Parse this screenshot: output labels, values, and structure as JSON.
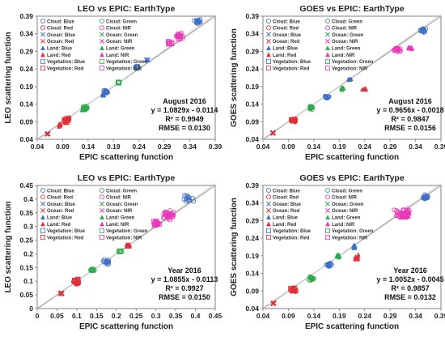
{
  "series_styles": [
    {
      "name": "Cloud: Blue",
      "color": "#3f6fc6",
      "marker": "circle"
    },
    {
      "name": "Cloud: Green",
      "color": "#2eaa4a",
      "marker": "circle"
    },
    {
      "name": "Cloud: Red",
      "color": "#e0323b",
      "marker": "circle"
    },
    {
      "name": "Cloud: NIR",
      "color": "#e83ab9",
      "marker": "circle"
    },
    {
      "name": "Ocean: Blue",
      "color": "#3f6fc6",
      "marker": "x"
    },
    {
      "name": "Ocean: Green",
      "color": "#2eaa4a",
      "marker": "x"
    },
    {
      "name": "Ocean: Red",
      "color": "#e0323b",
      "marker": "x"
    },
    {
      "name": "Ocean: NIR",
      "color": "#e83ab9",
      "marker": "x"
    },
    {
      "name": "Land: Blue",
      "color": "#3f6fc6",
      "marker": "triangle"
    },
    {
      "name": "Land: Green",
      "color": "#2eaa4a",
      "marker": "triangle"
    },
    {
      "name": "Land: Red",
      "color": "#e0323b",
      "marker": "triangle"
    },
    {
      "name": "Land: NIR",
      "color": "#e83ab9",
      "marker": "triangle"
    },
    {
      "name": "Vegetation: Blue",
      "color": "#3f6fc6",
      "marker": "square"
    },
    {
      "name": "Vegetation: Green",
      "color": "#2eaa4a",
      "marker": "square"
    },
    {
      "name": "Vegetation: Red",
      "color": "#e0323b",
      "marker": "square"
    },
    {
      "name": "Vegetation: NIR",
      "color": "#e83ab9",
      "marker": "square"
    }
  ],
  "chart_data": [
    {
      "type": "scatter",
      "title": "LEO vs EPIC: EarthType",
      "xlabel": "EPIC scattering function",
      "ylabel": "LEO scattering function",
      "xlim": [
        0.04,
        0.39
      ],
      "ylim": [
        0.04,
        0.39
      ],
      "xticks": [
        "0.04",
        "0.09",
        "0.14",
        "0.19",
        "0.24",
        "0.29",
        "0.34",
        "0.39"
      ],
      "yticks": [
        "0.04",
        "0.09",
        "0.14",
        "0.19",
        "0.24",
        "0.29",
        "0.34",
        "0.39"
      ],
      "legend": "top-left",
      "annotation": [
        "August 2016",
        "y = 1.0829x - 0.0114",
        "R² = 0.9949",
        "RMSE = 0.0130"
      ],
      "clusters": [
        {
          "series": 6,
          "x": 0.06,
          "y": 0.055,
          "n": 8,
          "sx": 0.004,
          "sy": 0.003
        },
        {
          "series": 10,
          "x": 0.085,
          "y": 0.08,
          "n": 12,
          "sx": 0.006,
          "sy": 0.005
        },
        {
          "series": 2,
          "x": 0.1,
          "y": 0.097,
          "n": 22,
          "sx": 0.008,
          "sy": 0.007
        },
        {
          "series": 14,
          "x": 0.095,
          "y": 0.092,
          "n": 12,
          "sx": 0.007,
          "sy": 0.006
        },
        {
          "series": 1,
          "x": 0.135,
          "y": 0.13,
          "n": 16,
          "sx": 0.006,
          "sy": 0.006
        },
        {
          "series": 9,
          "x": 0.13,
          "y": 0.125,
          "n": 8,
          "sx": 0.004,
          "sy": 0.004
        },
        {
          "series": 0,
          "x": 0.175,
          "y": 0.175,
          "n": 16,
          "sx": 0.006,
          "sy": 0.006
        },
        {
          "series": 8,
          "x": 0.17,
          "y": 0.165,
          "n": 6,
          "sx": 0.004,
          "sy": 0.004
        },
        {
          "series": 13,
          "x": 0.2,
          "y": 0.2,
          "n": 6,
          "sx": 0.004,
          "sy": 0.004
        },
        {
          "series": 12,
          "x": 0.235,
          "y": 0.245,
          "n": 6,
          "sx": 0.004,
          "sy": 0.004
        },
        {
          "series": 4,
          "x": 0.255,
          "y": 0.265,
          "n": 4,
          "sx": 0.004,
          "sy": 0.004
        },
        {
          "series": 3,
          "x": 0.32,
          "y": 0.335,
          "n": 22,
          "sx": 0.012,
          "sy": 0.012
        },
        {
          "series": 15,
          "x": 0.3,
          "y": 0.315,
          "n": 10,
          "sx": 0.006,
          "sy": 0.006
        },
        {
          "series": 0,
          "x": 0.355,
          "y": 0.375,
          "n": 18,
          "sx": 0.008,
          "sy": 0.01
        }
      ]
    },
    {
      "type": "scatter",
      "title": "GOES vs EPIC: EarthType",
      "xlabel": "EPIC scattering function",
      "ylabel": "GOES scattering function",
      "xlim": [
        0.04,
        0.39
      ],
      "ylim": [
        0.04,
        0.39
      ],
      "xticks": [
        "0.04",
        "0.09",
        "0.14",
        "0.19",
        "0.24",
        "0.29",
        "0.34",
        "0.39"
      ],
      "yticks": [
        "0.04",
        "0.09",
        "0.14",
        "0.19",
        "0.24",
        "0.29",
        "0.34",
        "0.39"
      ],
      "legend": "top-left",
      "annotation": [
        "August 2016",
        "y = 0.9656x - 0.0018",
        "R² = 0.9847",
        "RMSE = 0.0156"
      ],
      "clusters": [
        {
          "series": 6,
          "x": 0.06,
          "y": 0.058,
          "n": 8,
          "sx": 0.004,
          "sy": 0.003
        },
        {
          "series": 2,
          "x": 0.1,
          "y": 0.095,
          "n": 18,
          "sx": 0.007,
          "sy": 0.006
        },
        {
          "series": 14,
          "x": 0.1,
          "y": 0.095,
          "n": 10,
          "sx": 0.007,
          "sy": 0.006
        },
        {
          "series": 1,
          "x": 0.135,
          "y": 0.13,
          "n": 16,
          "sx": 0.006,
          "sy": 0.006
        },
        {
          "series": 0,
          "x": 0.165,
          "y": 0.16,
          "n": 14,
          "sx": 0.006,
          "sy": 0.006
        },
        {
          "series": 9,
          "x": 0.195,
          "y": 0.185,
          "n": 6,
          "sx": 0.006,
          "sy": 0.006
        },
        {
          "series": 8,
          "x": 0.21,
          "y": 0.21,
          "n": 5,
          "sx": 0.004,
          "sy": 0.004
        },
        {
          "series": 10,
          "x": 0.24,
          "y": 0.183,
          "n": 6,
          "sx": 0.005,
          "sy": 0.004
        },
        {
          "series": 3,
          "x": 0.305,
          "y": 0.295,
          "n": 22,
          "sx": 0.01,
          "sy": 0.008
        },
        {
          "series": 11,
          "x": 0.33,
          "y": 0.3,
          "n": 10,
          "sx": 0.006,
          "sy": 0.006
        },
        {
          "series": 0,
          "x": 0.355,
          "y": 0.35,
          "n": 16,
          "sx": 0.008,
          "sy": 0.008
        }
      ]
    },
    {
      "type": "scatter",
      "title": "LEO vs EPIC: EarthType",
      "xlabel": "EPIC scattering function",
      "ylabel": "LEO scattering function",
      "xlim": [
        0.0,
        0.45
      ],
      "ylim": [
        0.0,
        0.45
      ],
      "xticks": [
        "0",
        "0.05",
        "0.1",
        "0.15",
        "0.2",
        "0.25",
        "0.3",
        "0.35",
        "0.4",
        "0.45"
      ],
      "yticks": [
        "0",
        "0.05",
        "0.1",
        "0.15",
        "0.2",
        "0.25",
        "0.3",
        "0.35",
        "0.4",
        "0.45"
      ],
      "legend": "top-left",
      "annotation": [
        "Year 2016",
        "y = 1.0855x - 0.0113",
        "R² = 0.9927",
        "RMSE = 0.0150"
      ],
      "clusters": [
        {
          "series": 6,
          "x": 0.06,
          "y": 0.055,
          "n": 10,
          "sx": 0.005,
          "sy": 0.004
        },
        {
          "series": 14,
          "x": 0.1,
          "y": 0.1,
          "n": 14,
          "sx": 0.01,
          "sy": 0.01
        },
        {
          "series": 2,
          "x": 0.1,
          "y": 0.095,
          "n": 18,
          "sx": 0.01,
          "sy": 0.009
        },
        {
          "series": 1,
          "x": 0.14,
          "y": 0.14,
          "n": 14,
          "sx": 0.008,
          "sy": 0.008
        },
        {
          "series": 0,
          "x": 0.175,
          "y": 0.17,
          "n": 16,
          "sx": 0.01,
          "sy": 0.01
        },
        {
          "series": 13,
          "x": 0.21,
          "y": 0.21,
          "n": 8,
          "sx": 0.006,
          "sy": 0.006
        },
        {
          "series": 10,
          "x": 0.23,
          "y": 0.23,
          "n": 10,
          "sx": 0.008,
          "sy": 0.008
        },
        {
          "series": 3,
          "x": 0.33,
          "y": 0.34,
          "n": 40,
          "sx": 0.022,
          "sy": 0.025
        },
        {
          "series": 15,
          "x": 0.3,
          "y": 0.31,
          "n": 18,
          "sx": 0.012,
          "sy": 0.012
        },
        {
          "series": 0,
          "x": 0.38,
          "y": 0.4,
          "n": 16,
          "sx": 0.018,
          "sy": 0.018
        }
      ]
    },
    {
      "type": "scatter",
      "title": "GOES vs EPIC: EarthType",
      "xlabel": "EPIC scattering function",
      "ylabel": "GOES scattering function",
      "xlim": [
        0.04,
        0.39
      ],
      "ylim": [
        0.04,
        0.39
      ],
      "xticks": [
        "0.04",
        "0.09",
        "0.14",
        "0.19",
        "0.24",
        "0.29",
        "0.34",
        "0.39"
      ],
      "yticks": [
        "0.04",
        "0.09",
        "0.14",
        "0.19",
        "0.24",
        "0.29",
        "0.34",
        "0.39"
      ],
      "legend": "top-left",
      "annotation": [
        "Year 2016",
        "y = 1.0052x - 0.0045",
        "R² = 0.9857",
        "RMSE = 0.0132"
      ],
      "clusters": [
        {
          "series": 6,
          "x": 0.06,
          "y": 0.055,
          "n": 8,
          "sx": 0.004,
          "sy": 0.003
        },
        {
          "series": 14,
          "x": 0.1,
          "y": 0.095,
          "n": 14,
          "sx": 0.01,
          "sy": 0.009
        },
        {
          "series": 2,
          "x": 0.1,
          "y": 0.092,
          "n": 12,
          "sx": 0.008,
          "sy": 0.007
        },
        {
          "series": 1,
          "x": 0.135,
          "y": 0.125,
          "n": 14,
          "sx": 0.008,
          "sy": 0.008
        },
        {
          "series": 0,
          "x": 0.17,
          "y": 0.165,
          "n": 14,
          "sx": 0.008,
          "sy": 0.008
        },
        {
          "series": 9,
          "x": 0.19,
          "y": 0.19,
          "n": 8,
          "sx": 0.008,
          "sy": 0.01
        },
        {
          "series": 10,
          "x": 0.225,
          "y": 0.185,
          "n": 8,
          "sx": 0.008,
          "sy": 0.012
        },
        {
          "series": 8,
          "x": 0.22,
          "y": 0.215,
          "n": 8,
          "sx": 0.006,
          "sy": 0.008
        },
        {
          "series": 3,
          "x": 0.315,
          "y": 0.31,
          "n": 36,
          "sx": 0.02,
          "sy": 0.018
        },
        {
          "series": 11,
          "x": 0.32,
          "y": 0.305,
          "n": 14,
          "sx": 0.012,
          "sy": 0.014
        },
        {
          "series": 0,
          "x": 0.36,
          "y": 0.355,
          "n": 18,
          "sx": 0.012,
          "sy": 0.01
        }
      ]
    }
  ]
}
